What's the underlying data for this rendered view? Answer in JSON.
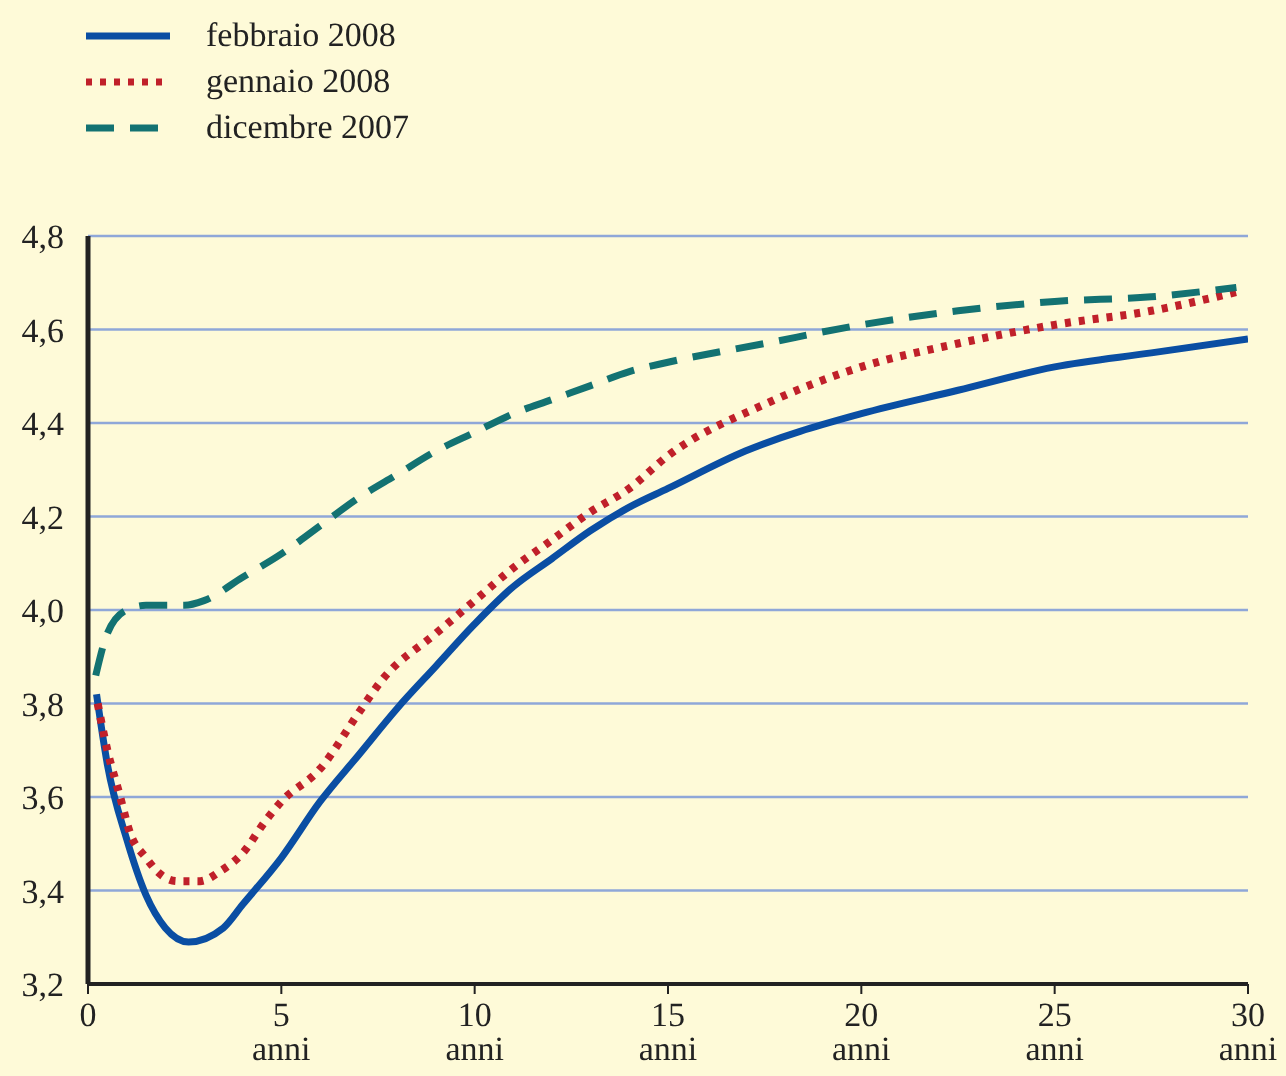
{
  "chart_data": {
    "type": "line",
    "xlim": [
      0,
      30
    ],
    "xticks": [
      0,
      {
        "value": 5,
        "label": "5\nanni"
      },
      {
        "value": 10,
        "label": "10\nanni"
      },
      {
        "value": 15,
        "label": "15\nanni"
      },
      {
        "value": 20,
        "label": "20\nanni"
      },
      {
        "value": 25,
        "label": "25\nanni"
      },
      {
        "value": 30,
        "label": "30\nanni"
      }
    ],
    "ylim": [
      3.2,
      4.8
    ],
    "yticks": [
      {
        "value": 3.2,
        "label": "3,2"
      },
      {
        "value": 3.4,
        "label": "3,4"
      },
      {
        "value": 3.6,
        "label": "3,6"
      },
      {
        "value": 3.8,
        "label": "3,8"
      },
      {
        "value": 4.0,
        "label": "4,0"
      },
      {
        "value": 4.2,
        "label": "4,2"
      },
      {
        "value": 4.4,
        "label": "4,4"
      },
      {
        "value": 4.6,
        "label": "4,6"
      },
      {
        "value": 4.8,
        "label": "4,8"
      }
    ],
    "grid": "y",
    "legend": "top left",
    "marker": "none",
    "series": [
      {
        "name": "febbraio 2008",
        "color": "#0a4ea3",
        "line_style": "solid",
        "x": [
          0.22,
          0.5,
          1,
          1.5,
          2,
          2.6,
          3.5,
          4,
          5,
          6,
          7,
          8,
          9,
          10,
          11,
          12,
          13,
          14,
          15,
          17,
          20,
          22.5,
          25,
          27.5,
          30
        ],
        "values": [
          3.82,
          3.67,
          3.51,
          3.39,
          3.32,
          3.29,
          3.32,
          3.37,
          3.47,
          3.59,
          3.69,
          3.79,
          3.88,
          3.97,
          4.05,
          4.11,
          4.17,
          4.22,
          4.26,
          4.34,
          4.42,
          4.47,
          4.52,
          4.55,
          4.58
        ]
      },
      {
        "name": "gennaio 2008",
        "color": "#c0202a",
        "line_style": "dotted",
        "x": [
          0.25,
          0.5,
          0.8,
          1.1,
          1.5,
          1.8,
          2.3,
          2.9,
          3.4,
          4,
          4.6,
          5,
          6,
          7,
          7.6,
          9,
          10,
          11,
          12,
          13,
          14,
          15,
          17.5,
          20,
          22.5,
          25,
          27.5,
          29.7
        ],
        "values": [
          3.8,
          3.7,
          3.61,
          3.52,
          3.47,
          3.44,
          3.42,
          3.42,
          3.44,
          3.48,
          3.55,
          3.59,
          3.66,
          3.78,
          3.85,
          3.95,
          4.02,
          4.09,
          4.15,
          4.21,
          4.26,
          4.33,
          4.44,
          4.52,
          4.57,
          4.61,
          4.64,
          4.68
        ]
      },
      {
        "name": "dicembre 2007",
        "color": "#137272",
        "line_style": "dashed",
        "x": [
          0.2,
          0.5,
          1,
          1.5,
          2,
          2.5,
          3,
          4,
          5,
          6,
          7,
          8,
          9,
          10,
          11,
          12,
          13,
          14,
          15,
          17.5,
          20,
          22.5,
          25,
          27.5,
          29.7
        ],
        "values": [
          3.86,
          3.95,
          4.0,
          4.01,
          4.01,
          4.01,
          4.02,
          4.07,
          4.12,
          4.18,
          4.24,
          4.29,
          4.34,
          4.38,
          4.42,
          4.45,
          4.48,
          4.51,
          4.53,
          4.57,
          4.61,
          4.64,
          4.66,
          4.67,
          4.69
        ]
      }
    ]
  }
}
